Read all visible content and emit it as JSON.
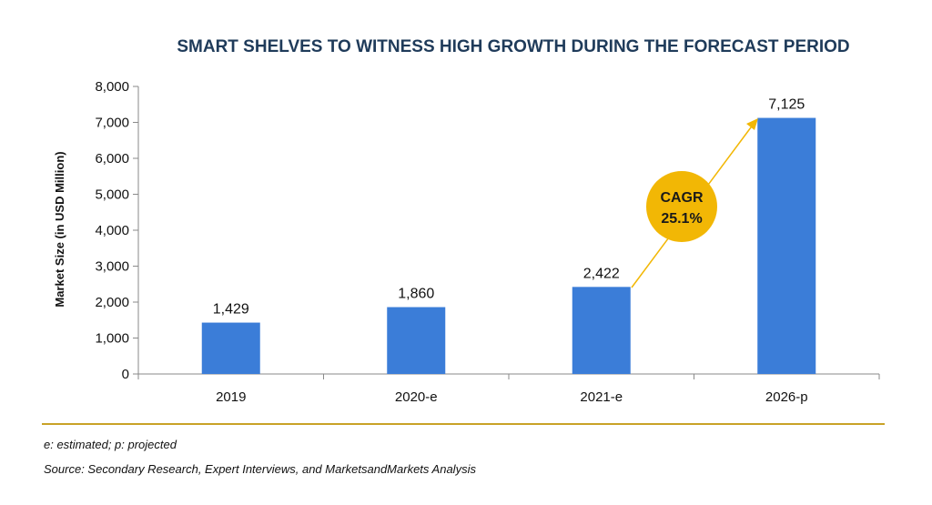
{
  "chart_data": {
    "type": "bar",
    "title": "SMART SHELVES TO WITNESS HIGH GROWTH DURING THE FORECAST PERIOD",
    "xlabel": "",
    "ylabel": "Market Size (in USD Million)",
    "categories": [
      "2019",
      "2020-e",
      "2021-e",
      "2026-p"
    ],
    "values": [
      1429,
      1860,
      2422,
      7125
    ],
    "value_labels": [
      "1,429",
      "1,860",
      "2,422",
      "7,125"
    ],
    "ylim": [
      0,
      8000
    ],
    "yticks": [
      0,
      1000,
      2000,
      3000,
      4000,
      5000,
      6000,
      7000,
      8000
    ],
    "ytick_labels": [
      "0",
      "1,000",
      "2,000",
      "3,000",
      "4,000",
      "5,000",
      "6,000",
      "7,000",
      "8,000"
    ],
    "grid": false,
    "annotation": {
      "line1": "CAGR",
      "line2": "25.1%"
    },
    "colors": {
      "bar": "#3b7dd8",
      "cagr_circle": "#f2b705",
      "arrow": "#f2b705",
      "divider": "#c9a227",
      "title": "#1f3b5a"
    }
  },
  "footnotes": {
    "legend_note": "e: estimated; p: projected",
    "source": "Source: Secondary Research, Expert Interviews, and MarketsandMarkets Analysis"
  }
}
